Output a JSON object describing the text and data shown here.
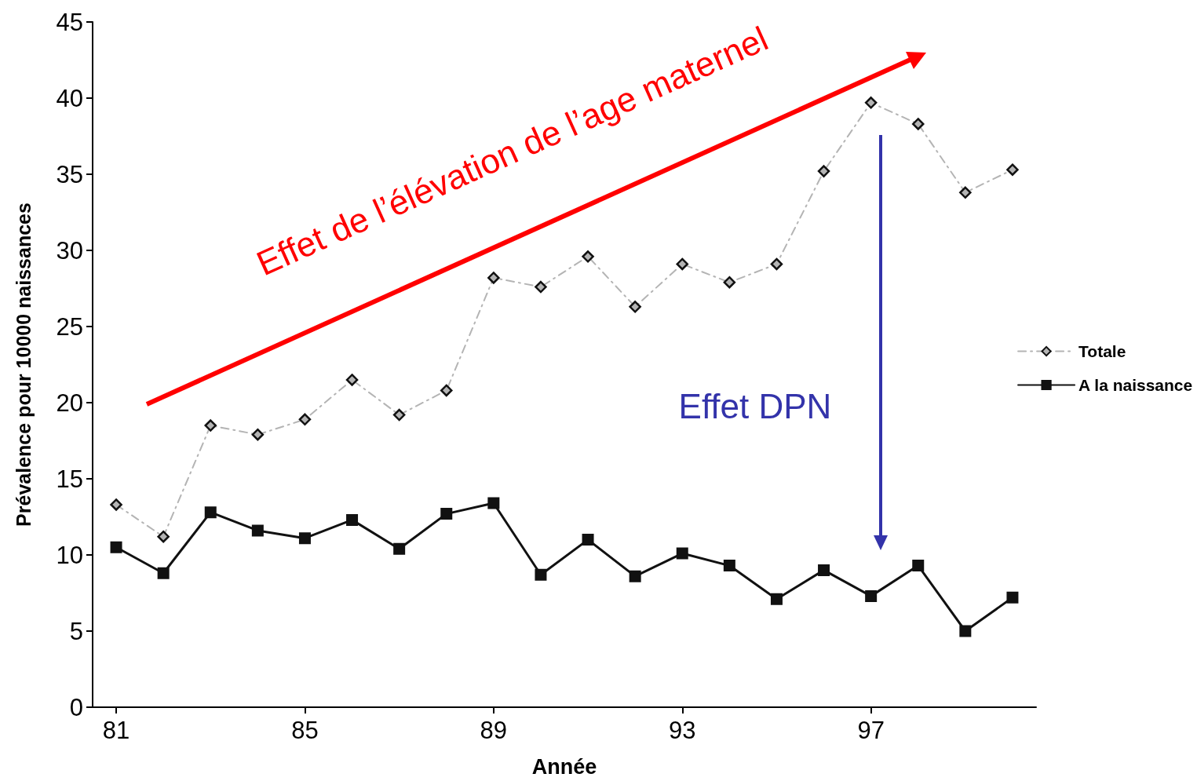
{
  "chart_data": {
    "type": "line",
    "xlabel": "Année",
    "ylabel": "Prévalence pour 10000 naissances",
    "x": [
      81,
      82,
      83,
      84,
      85,
      86,
      87,
      88,
      89,
      90,
      91,
      92,
      93,
      94,
      95,
      96,
      97,
      98,
      99,
      100
    ],
    "series": [
      {
        "name": "Totale",
        "color": "#b4b4b4",
        "marker": "diamond",
        "line_style": "dashed",
        "values": [
          13.3,
          11.2,
          18.5,
          17.9,
          18.9,
          21.5,
          19.2,
          20.8,
          28.2,
          27.6,
          29.6,
          26.3,
          29.1,
          27.9,
          29.1,
          35.2,
          39.7,
          38.3,
          33.8,
          35.3
        ]
      },
      {
        "name": "A la naissance",
        "color": "#111111",
        "marker": "square",
        "line_style": "solid",
        "values": [
          10.5,
          8.8,
          12.8,
          11.6,
          11.1,
          12.3,
          10.4,
          12.7,
          13.4,
          8.7,
          11.0,
          8.6,
          10.1,
          9.3,
          7.1,
          9.0,
          7.3,
          9.3,
          5.0,
          7.2
        ]
      }
    ],
    "xlim": [
      80.5,
      100.5
    ],
    "xticks": [
      81,
      85,
      89,
      93,
      97
    ],
    "ylim": [
      0,
      45
    ],
    "yticks": [
      0,
      5,
      10,
      15,
      20,
      25,
      30,
      35,
      40,
      45
    ],
    "grid": false,
    "legend": "right",
    "annotations": [
      "Effet de l’élévation de l’age maternel",
      "Effet DPN"
    ]
  }
}
